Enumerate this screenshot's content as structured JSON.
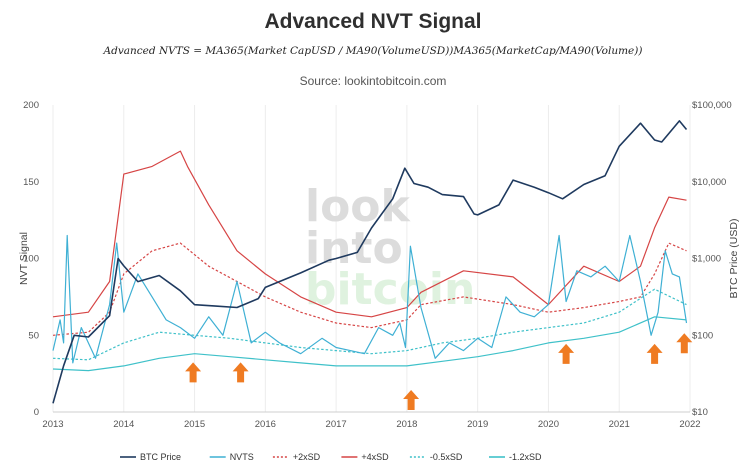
{
  "chart_data": {
    "type": "line",
    "title": "Advanced NVT Signal",
    "subtitle": "Advanced NVTS = MA365(Market CapUSD / MA90(VolumeUSD))MA365(MarketCap/MA90(Volume))",
    "source": "Source: lookintobitcoin.com",
    "watermark": [
      "look",
      "into",
      "bitcoin"
    ],
    "xlabel": "",
    "ylabel": "NVT Signal",
    "y2label": "BTC Price (USD)",
    "x_ticks": [
      "2013",
      "2014",
      "2015",
      "2016",
      "2017",
      "2018",
      "2019",
      "2020",
      "2021",
      "2022"
    ],
    "xlim": [
      2013.0,
      2022.0
    ],
    "ylim": [
      0,
      200
    ],
    "y_ticks": [
      "0",
      "50",
      "100",
      "150",
      "200"
    ],
    "y2_ticks": [
      "$10",
      "$100",
      "$1,000",
      "$10,000",
      "$100,000"
    ],
    "y2_scale": "log",
    "y2lim": [
      10,
      100000
    ],
    "series": [
      {
        "name": "BTC Price",
        "color": "#1f3a5f",
        "axis": "right",
        "style": "solid",
        "x": [
          2013.0,
          2013.15,
          2013.3,
          2013.5,
          2013.8,
          2013.92,
          2014.0,
          2014.2,
          2014.5,
          2014.8,
          2015.0,
          2015.3,
          2015.6,
          2015.9,
          2016.0,
          2016.5,
          2016.9,
          2017.0,
          2017.3,
          2017.5,
          2017.8,
          2017.97,
          2018.1,
          2018.3,
          2018.5,
          2018.8,
          2018.95,
          2019.0,
          2019.3,
          2019.5,
          2019.8,
          2020.0,
          2020.2,
          2020.5,
          2020.8,
          2021.0,
          2021.3,
          2021.5,
          2021.6,
          2021.85,
          2021.95
        ],
        "values": [
          13,
          40,
          100,
          95,
          180,
          1000,
          800,
          500,
          600,
          380,
          250,
          240,
          230,
          300,
          420,
          650,
          950,
          1000,
          1200,
          2500,
          6000,
          15000,
          9500,
          8500,
          6800,
          6400,
          3800,
          3700,
          5000,
          10500,
          8500,
          7200,
          6000,
          9200,
          12000,
          29000,
          58000,
          35000,
          33000,
          62000,
          48000
        ]
      },
      {
        "name": "NVTS",
        "color": "#3fb0d4",
        "axis": "left",
        "style": "solid",
        "x": [
          2013.0,
          2013.1,
          2013.15,
          2013.2,
          2013.28,
          2013.4,
          2013.6,
          2013.8,
          2013.9,
          2014.0,
          2014.2,
          2014.4,
          2014.6,
          2014.8,
          2015.0,
          2015.2,
          2015.4,
          2015.6,
          2015.8,
          2016.0,
          2016.2,
          2016.5,
          2016.8,
          2017.0,
          2017.2,
          2017.4,
          2017.6,
          2017.8,
          2017.9,
          2017.98,
          2018.05,
          2018.2,
          2018.4,
          2018.6,
          2018.8,
          2019.0,
          2019.2,
          2019.4,
          2019.6,
          2019.8,
          2020.0,
          2020.15,
          2020.25,
          2020.4,
          2020.6,
          2020.8,
          2021.0,
          2021.15,
          2021.3,
          2021.45,
          2021.55,
          2021.65,
          2021.75,
          2021.85,
          2021.95
        ],
        "values": [
          40,
          60,
          45,
          115,
          32,
          55,
          35,
          70,
          110,
          65,
          90,
          75,
          60,
          55,
          48,
          62,
          50,
          85,
          45,
          52,
          45,
          38,
          48,
          42,
          40,
          38,
          55,
          50,
          58,
          42,
          108,
          68,
          35,
          45,
          40,
          48,
          42,
          75,
          65,
          62,
          70,
          115,
          72,
          92,
          88,
          95,
          85,
          115,
          85,
          50,
          65,
          105,
          90,
          88,
          58
        ]
      },
      {
        "name": "+2xSD",
        "color": "#d64545",
        "axis": "left",
        "style": "dotted",
        "x": [
          2013.0,
          2013.5,
          2013.8,
          2014.0,
          2014.4,
          2014.8,
          2015.2,
          2015.6,
          2016.0,
          2016.5,
          2017.0,
          2017.5,
          2018.0,
          2018.2,
          2018.8,
          2019.5,
          2020.0,
          2020.5,
          2021.0,
          2021.3,
          2021.5,
          2021.7,
          2021.95
        ],
        "values": [
          50,
          52,
          65,
          90,
          105,
          110,
          95,
          85,
          75,
          65,
          58,
          55,
          60,
          70,
          75,
          70,
          65,
          68,
          72,
          75,
          90,
          110,
          105
        ]
      },
      {
        "name": "+4xSD",
        "color": "#d64545",
        "axis": "left",
        "style": "solid",
        "x": [
          2013.0,
          2013.5,
          2013.8,
          2014.0,
          2014.4,
          2014.8,
          2014.9,
          2015.2,
          2015.6,
          2016.0,
          2016.5,
          2017.0,
          2017.5,
          2018.0,
          2018.2,
          2018.8,
          2019.5,
          2020.0,
          2020.5,
          2021.0,
          2021.3,
          2021.5,
          2021.7,
          2021.95
        ],
        "values": [
          62,
          65,
          85,
          155,
          160,
          170,
          160,
          135,
          105,
          90,
          75,
          65,
          62,
          68,
          78,
          92,
          88,
          70,
          95,
          85,
          95,
          120,
          140,
          138
        ]
      },
      {
        "name": "-0.5xSD",
        "color": "#3fc1c9",
        "axis": "left",
        "style": "dotted",
        "x": [
          2013.0,
          2013.5,
          2014.0,
          2014.5,
          2015.0,
          2015.5,
          2016.0,
          2016.5,
          2017.0,
          2017.5,
          2018.0,
          2018.5,
          2019.0,
          2019.5,
          2020.0,
          2020.5,
          2021.0,
          2021.5,
          2021.95
        ],
        "values": [
          35,
          34,
          45,
          52,
          50,
          48,
          45,
          42,
          40,
          38,
          40,
          45,
          48,
          52,
          55,
          58,
          65,
          80,
          70
        ]
      },
      {
        "name": "-1.2xSD",
        "color": "#3fc1c9",
        "axis": "left",
        "style": "solid",
        "x": [
          2013.0,
          2013.5,
          2014.0,
          2014.5,
          2015.0,
          2015.5,
          2016.0,
          2016.5,
          2017.0,
          2017.5,
          2018.0,
          2018.5,
          2019.0,
          2019.5,
          2020.0,
          2020.5,
          2021.0,
          2021.5,
          2021.95
        ],
        "values": [
          28,
          27,
          30,
          35,
          38,
          36,
          34,
          32,
          30,
          30,
          30,
          33,
          36,
          40,
          45,
          48,
          52,
          62,
          60
        ]
      }
    ],
    "annotations": [
      {
        "type": "up-arrow",
        "x": 2014.98,
        "color": "#ef7b22"
      },
      {
        "type": "up-arrow",
        "x": 2015.65,
        "color": "#ef7b22"
      },
      {
        "type": "up-arrow",
        "x": 2018.06,
        "color": "#ef7b22"
      },
      {
        "type": "up-arrow",
        "x": 2020.25,
        "color": "#ef7b22"
      },
      {
        "type": "up-arrow",
        "x": 2021.5,
        "color": "#ef7b22"
      },
      {
        "type": "up-arrow",
        "x": 2021.92,
        "color": "#ef7b22"
      }
    ],
    "arrow_levels": [
      18,
      18,
      0,
      30,
      30,
      37
    ],
    "legend_position": "bottom"
  }
}
